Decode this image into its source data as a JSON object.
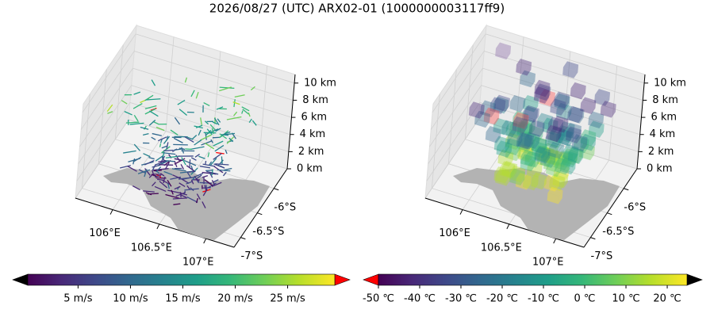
{
  "title": "2026/08/27 (UTC) ARX02-01 (1000000003117ff9)",
  "chart_data": [
    {
      "type": "quiver3d",
      "xlim": [
        105.6,
        107.3
      ],
      "ylim": [
        -7.2,
        -5.6
      ],
      "zlim": [
        0,
        11
      ],
      "xticks": [
        {
          "value": 106,
          "label": "106°E"
        },
        {
          "value": 106.5,
          "label": "106.5°E"
        },
        {
          "value": 107,
          "label": "107°E"
        }
      ],
      "yticks": [
        {
          "value": -6,
          "label": "-6°S"
        },
        {
          "value": -6.5,
          "label": "-6.5°S"
        },
        {
          "value": -7,
          "label": "-7°S"
        }
      ],
      "zticks": [
        {
          "value": 0,
          "label": "0 km"
        },
        {
          "value": 2,
          "label": "2 km"
        },
        {
          "value": 4,
          "label": "4 km"
        },
        {
          "value": 6,
          "label": "6 km"
        },
        {
          "value": 8,
          "label": "8 km"
        },
        {
          "value": 10,
          "label": "10 km"
        }
      ],
      "colorbar": {
        "colormap": "viridis",
        "clim": [
          0.2,
          29.5
        ],
        "under_color": "#000000",
        "over_color": "#ff0000",
        "ticks": [
          {
            "value": 5,
            "label": "5 m/s"
          },
          {
            "value": 10,
            "label": "10 m/s"
          },
          {
            "value": 15,
            "label": "15 m/s"
          },
          {
            "value": 20,
            "label": "20 m/s"
          },
          {
            "value": 25,
            "label": "25 m/s"
          }
        ]
      }
    },
    {
      "type": "voxel3d",
      "xlim": [
        105.6,
        107.3
      ],
      "ylim": [
        -7.2,
        -5.6
      ],
      "zlim": [
        0,
        11
      ],
      "xticks": [
        {
          "value": 106,
          "label": "106°E"
        },
        {
          "value": 106.5,
          "label": "106.5°E"
        },
        {
          "value": 107,
          "label": "107°E"
        }
      ],
      "yticks": [
        {
          "value": -6,
          "label": "-6°S"
        },
        {
          "value": -6.5,
          "label": "-6.5°S"
        },
        {
          "value": -7,
          "label": "-7°S"
        }
      ],
      "zticks": [
        {
          "value": 0,
          "label": "0 km"
        },
        {
          "value": 2,
          "label": "2 km"
        },
        {
          "value": 4,
          "label": "4 km"
        },
        {
          "value": 6,
          "label": "6 km"
        },
        {
          "value": 8,
          "label": "8 km"
        },
        {
          "value": 10,
          "label": "10 km"
        }
      ],
      "colorbar": {
        "colormap": "viridis",
        "clim": [
          -50,
          24.8
        ],
        "under_color": "#ff0000",
        "over_color": "#000000",
        "ticks": [
          {
            "value": -50,
            "label": "-50 ℃"
          },
          {
            "value": -40,
            "label": "-40 ℃"
          },
          {
            "value": -30,
            "label": "-30 ℃"
          },
          {
            "value": -20,
            "label": "-20 ℃"
          },
          {
            "value": -10,
            "label": "-10 ℃"
          },
          {
            "value": 0,
            "label": "0 ℃"
          },
          {
            "value": 10,
            "label": "10 ℃"
          },
          {
            "value": 20,
            "label": "20 ℃"
          }
        ]
      }
    }
  ]
}
